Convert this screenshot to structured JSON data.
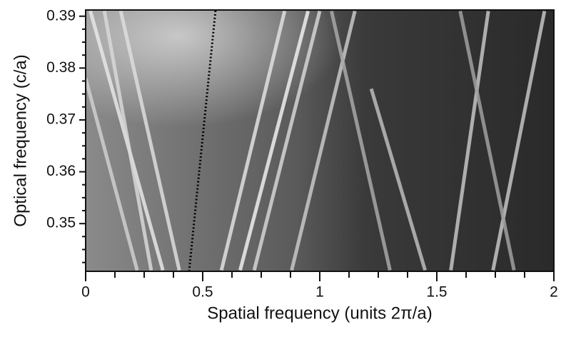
{
  "chart_data": {
    "type": "image-lines",
    "x_label": "Spatial frequency (units 2π/a)",
    "y_label": "Optical frequency (c/a)",
    "xlim": [
      0,
      2
    ],
    "ylim": [
      0.3408,
      0.3912
    ],
    "xticks": [
      0,
      0.5,
      1,
      1.5,
      2
    ],
    "yticks": [
      0.35,
      0.36,
      0.37,
      0.38,
      0.39
    ],
    "xminorticks": [
      0.125,
      0.25,
      0.375,
      0.625,
      0.75,
      0.875,
      1.125,
      1.25,
      1.375,
      1.625,
      1.75,
      1.875
    ],
    "yminorticks": [
      0.3425,
      0.345,
      0.3475,
      0.3525,
      0.355,
      0.3575,
      0.3625,
      0.365,
      0.3675,
      0.3725,
      0.375,
      0.3775,
      0.3825,
      0.385,
      0.3875
    ],
    "series": [
      {
        "color": "#e6e6e6",
        "x": [
          0.02,
          0.33
        ],
        "values": [
          0.391,
          0.341
        ]
      },
      {
        "color": "#d8d8d8",
        "x": [
          0.08,
          0.28
        ],
        "values": [
          0.391,
          0.341
        ]
      },
      {
        "color": "#cfcfcf",
        "x": [
          0.0,
          0.22
        ],
        "values": [
          0.378,
          0.341
        ]
      },
      {
        "color": "#dddddd",
        "x": [
          0.15,
          0.4
        ],
        "values": [
          0.391,
          0.341
        ]
      },
      {
        "color": "#e0e0e0",
        "x": [
          0.58,
          0.85
        ],
        "values": [
          0.341,
          0.391
        ]
      },
      {
        "color": "#efefef",
        "x": [
          0.66,
          0.95
        ],
        "values": [
          0.341,
          0.391
        ]
      },
      {
        "color": "#d5d5d5",
        "x": [
          0.72,
          1.0
        ],
        "values": [
          0.341,
          0.391
        ]
      },
      {
        "color": "#c8c8c8",
        "x": [
          1.15,
          0.88
        ],
        "values": [
          0.391,
          0.341
        ]
      },
      {
        "color": "#bcbcbc",
        "x": [
          1.22,
          1.45
        ],
        "values": [
          0.376,
          0.341
        ]
      },
      {
        "color": "#a8a8a8",
        "x": [
          1.05,
          1.3
        ],
        "values": [
          0.391,
          0.341
        ]
      },
      {
        "color": "#c4c4c4",
        "x": [
          1.56,
          1.72
        ],
        "values": [
          0.341,
          0.391
        ]
      },
      {
        "color": "#c4c4c4",
        "x": [
          1.74,
          1.96
        ],
        "values": [
          0.341,
          0.391
        ]
      },
      {
        "color": "#a0a0a0",
        "x": [
          1.6,
          1.83
        ],
        "values": [
          0.391,
          0.341
        ]
      },
      {
        "color": "#000000",
        "style": "dotted",
        "x": [
          0.442,
          0.555
        ],
        "values": [
          0.3408,
          0.3912
        ]
      }
    ]
  }
}
